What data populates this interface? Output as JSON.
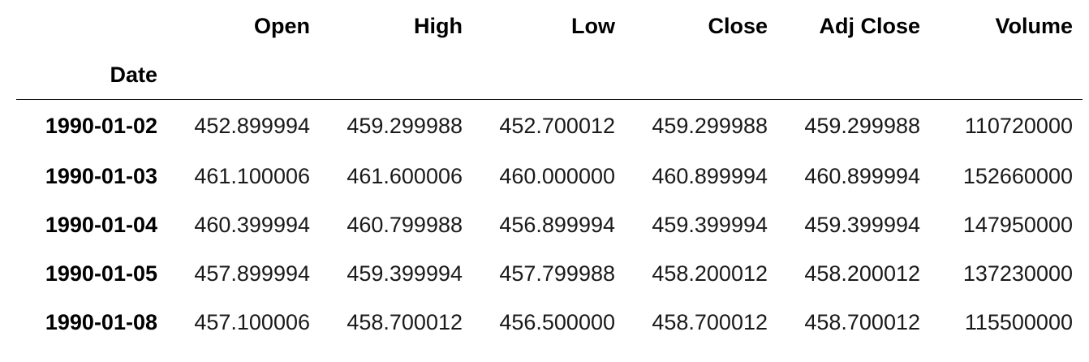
{
  "table": {
    "index_name": "Date",
    "columns": [
      "Open",
      "High",
      "Low",
      "Close",
      "Adj Close",
      "Volume"
    ],
    "rows": [
      {
        "date": "1990-01-02",
        "values": [
          "452.899994",
          "459.299988",
          "452.700012",
          "459.299988",
          "459.299988",
          "110720000"
        ]
      },
      {
        "date": "1990-01-03",
        "values": [
          "461.100006",
          "461.600006",
          "460.000000",
          "460.899994",
          "460.899994",
          "152660000"
        ]
      },
      {
        "date": "1990-01-04",
        "values": [
          "460.399994",
          "460.799988",
          "456.899994",
          "459.399994",
          "459.399994",
          "147950000"
        ]
      },
      {
        "date": "1990-01-05",
        "values": [
          "457.899994",
          "459.399994",
          "457.799988",
          "458.200012",
          "458.200012",
          "137230000"
        ]
      },
      {
        "date": "1990-01-08",
        "values": [
          "457.100006",
          "458.700012",
          "456.500000",
          "458.700012",
          "458.700012",
          "115500000"
        ]
      }
    ]
  }
}
